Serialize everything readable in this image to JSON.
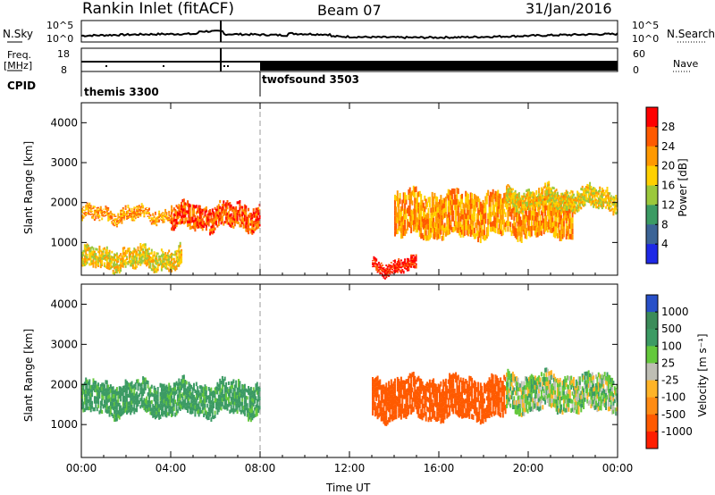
{
  "header": {
    "station": "Rankin Inlet (fitACF)",
    "beam": "Beam 07",
    "date": "31/Jan/2016"
  },
  "noise_panel": {
    "left_label": "N.Sky",
    "right_label": "N.Search",
    "y_ticks_left": [
      "10^5",
      "10^0"
    ],
    "y_ticks_right": [
      "10^5",
      "10^0"
    ]
  },
  "freq_panel": {
    "left_label_1": "Freq.",
    "left_label_2": "[MHz]",
    "right_label": "Nave",
    "y_ticks_left": [
      "18",
      "8"
    ],
    "y_ticks_right": [
      "60",
      "0"
    ]
  },
  "cpid": {
    "label": "CPID",
    "modes": [
      {
        "name": "themis 3300",
        "start_hour": 0
      },
      {
        "name": "twofsound 3503",
        "start_hour": 8
      }
    ]
  },
  "power_panel": {
    "ylabel": "Slant Range [km]",
    "colorbar_label": "Power [dB]",
    "colorbar_ticks": [
      "28",
      "24",
      "20",
      "16",
      "12",
      "8",
      "4"
    ],
    "colors": [
      "#ff0000",
      "#ff5a00",
      "#ff9900",
      "#ffd000",
      "#9bc83c",
      "#3c9b64",
      "#3c6496",
      "#1e28e6"
    ]
  },
  "velocity_panel": {
    "ylabel": "Slant Range [km]",
    "colorbar_label": "Velocity [m s⁻¹]",
    "colorbar_ticks": [
      "1000",
      "500",
      "100",
      "25",
      "-25",
      "-100",
      "-500",
      "-1000"
    ],
    "colors": [
      "#2850c8",
      "#3c8c5a",
      "#3c9b64",
      "#64c83c",
      "#bebeb4",
      "#ffb428",
      "#ff8c14",
      "#ff5a00",
      "#ff1e00"
    ],
    "ground_scatter_color": "#bebeb4"
  },
  "chart_data": {
    "type": "heatmap",
    "xlabel": "Time UT",
    "x_tick_labels": [
      "00:00",
      "04:00",
      "08:00",
      "12:00",
      "16:00",
      "20:00",
      "00:00"
    ],
    "x_range_hours": [
      0,
      24
    ],
    "y_tick_labels": [
      "1000",
      "2000",
      "3000",
      "4000"
    ],
    "y_range_km": [
      180,
      4500
    ],
    "power_regions": [
      {
        "t0": 0.0,
        "t1": 4.0,
        "r0": 1500,
        "r1": 1900,
        "dB": 20
      },
      {
        "t0": 4.0,
        "t1": 8.0,
        "r0": 1300,
        "r1": 2000,
        "dB": 24
      },
      {
        "t0": 0.0,
        "t1": 4.5,
        "r0": 300,
        "r1": 900,
        "dB": 16
      },
      {
        "t0": 13.0,
        "t1": 15.0,
        "r0": 200,
        "r1": 600,
        "dB": 28
      },
      {
        "t0": 14.0,
        "t1": 22.0,
        "r0": 1100,
        "r1": 2300,
        "dB": 20
      },
      {
        "t0": 19.0,
        "t1": 24.0,
        "r0": 1800,
        "r1": 2400,
        "dB": 16
      }
    ],
    "velocity_regions": [
      {
        "t0": 0.0,
        "t1": 8.0,
        "r0": 1200,
        "r1": 2100,
        "v": 100
      },
      {
        "t0": 13.0,
        "t1": 19.0,
        "r0": 1100,
        "r1": 2200,
        "v": -500
      },
      {
        "t0": 19.0,
        "t1": 24.0,
        "r0": 1300,
        "r1": 2300,
        "v": 25
      }
    ]
  }
}
